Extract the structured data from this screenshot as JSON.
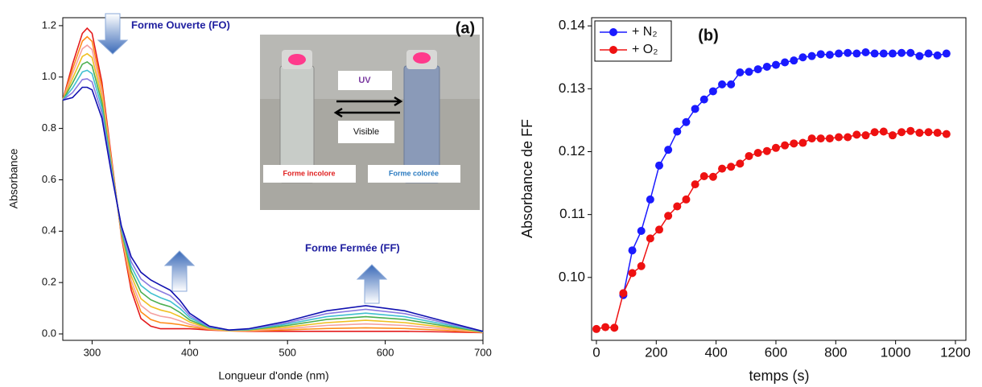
{
  "chart_data": [
    {
      "type": "line",
      "panel_label": "(a)",
      "x_label": "Longueur d'onde (nm)",
      "y_label": "Absorbance",
      "annotations": [
        "Forme Ouverte (FO)",
        "Forme Fermée (FF)"
      ],
      "inset_labels": [
        "UV",
        "Visible",
        "Forme incolore",
        "Forme colorée"
      ],
      "x": [
        270,
        280,
        290,
        295,
        300,
        310,
        320,
        330,
        340,
        350,
        360,
        370,
        380,
        390,
        400,
        420,
        440,
        460,
        500,
        540,
        580,
        620,
        660,
        700
      ],
      "series": [
        {
          "color": "#e41a1c",
          "values": [
            0.91,
            1.05,
            1.17,
            1.19,
            1.17,
            0.98,
            0.68,
            0.38,
            0.17,
            0.06,
            0.03,
            0.02,
            0.02,
            0.02,
            0.02,
            0.015,
            0.012,
            0.01,
            0.01,
            0.01,
            0.01,
            0.01,
            0.008,
            0.005
          ]
        },
        {
          "color": "#ff8c1a",
          "values": [
            0.91,
            1.031,
            1.14,
            1.157,
            1.139,
            0.96,
            0.671,
            0.386,
            0.189,
            0.086,
            0.056,
            0.044,
            0.041,
            0.036,
            0.029,
            0.017,
            0.012,
            0.011,
            0.016,
            0.021,
            0.024,
            0.021,
            0.014,
            0.006
          ]
        },
        {
          "color": "#f4a0a0",
          "values": [
            0.91,
            1.013,
            1.11,
            1.124,
            1.107,
            0.94,
            0.663,
            0.391,
            0.207,
            0.111,
            0.081,
            0.069,
            0.063,
            0.051,
            0.037,
            0.019,
            0.013,
            0.013,
            0.021,
            0.033,
            0.039,
            0.033,
            0.02,
            0.006
          ]
        },
        {
          "color": "#f0c020",
          "values": [
            0.91,
            0.994,
            1.08,
            1.091,
            1.076,
            0.92,
            0.654,
            0.397,
            0.226,
            0.137,
            0.107,
            0.093,
            0.084,
            0.067,
            0.046,
            0.021,
            0.013,
            0.014,
            0.027,
            0.044,
            0.053,
            0.044,
            0.026,
            0.007
          ]
        },
        {
          "color": "#4caf50",
          "values": [
            0.91,
            0.976,
            1.05,
            1.059,
            1.044,
            0.9,
            0.646,
            0.403,
            0.244,
            0.163,
            0.133,
            0.117,
            0.106,
            0.083,
            0.054,
            0.024,
            0.014,
            0.016,
            0.033,
            0.056,
            0.067,
            0.056,
            0.032,
            0.008
          ]
        },
        {
          "color": "#40c0d0",
          "values": [
            0.91,
            0.957,
            1.02,
            1.026,
            1.013,
            0.88,
            0.637,
            0.409,
            0.263,
            0.189,
            0.159,
            0.141,
            0.127,
            0.099,
            0.063,
            0.026,
            0.014,
            0.017,
            0.039,
            0.067,
            0.081,
            0.067,
            0.038,
            0.009
          ]
        },
        {
          "color": "#8a7be0",
          "values": [
            0.91,
            0.939,
            0.99,
            0.993,
            0.981,
            0.86,
            0.629,
            0.414,
            0.281,
            0.214,
            0.184,
            0.166,
            0.149,
            0.114,
            0.071,
            0.028,
            0.015,
            0.019,
            0.044,
            0.079,
            0.096,
            0.079,
            0.044,
            0.009
          ]
        },
        {
          "color": "#1010b0",
          "values": [
            0.91,
            0.92,
            0.96,
            0.96,
            0.95,
            0.84,
            0.62,
            0.42,
            0.3,
            0.24,
            0.21,
            0.19,
            0.17,
            0.13,
            0.08,
            0.03,
            0.015,
            0.02,
            0.05,
            0.09,
            0.11,
            0.09,
            0.05,
            0.01
          ]
        }
      ],
      "xlim": [
        270,
        700
      ],
      "xticks": [
        300,
        400,
        500,
        600,
        700
      ],
      "ylim": [
        -0.025,
        1.231
      ],
      "yticks": [
        {
          "value": 0,
          "label": "0.0"
        },
        0.2,
        0.4,
        0.6,
        0.8,
        {
          "value": 1,
          "label": "1.0"
        },
        1.2
      ],
      "markers": false
    },
    {
      "type": "line",
      "panel_label": "(b)",
      "x_label": "temps (s)",
      "y_label": "Absorbance de FF",
      "x": [
        0,
        30,
        60,
        90,
        120,
        150,
        180,
        210,
        240,
        270,
        300,
        330,
        360,
        390,
        420,
        450,
        480,
        510,
        540,
        570,
        600,
        630,
        660,
        690,
        720,
        750,
        780,
        810,
        840,
        870,
        900,
        930,
        960,
        990,
        1020,
        1050,
        1080,
        1110,
        1140,
        1170
      ],
      "series": [
        {
          "name": "+ N₂",
          "color": "#1a1aff",
          "values": [
            null,
            null,
            null,
            0.0972,
            0.1043,
            0.1074,
            0.1124,
            0.1178,
            0.1203,
            0.1232,
            0.1247,
            0.1268,
            0.1283,
            0.1296,
            0.1307,
            0.1307,
            0.1326,
            0.1327,
            0.1331,
            0.1335,
            0.1338,
            0.1342,
            0.1345,
            0.135,
            0.1352,
            0.1355,
            0.1354,
            0.1356,
            0.1357,
            0.1356,
            0.1358,
            0.1356,
            0.1356,
            0.1356,
            0.1357,
            0.1357,
            0.1352,
            0.1356,
            0.1353,
            0.1356
          ]
        },
        {
          "name": "+ O₂",
          "color": "#ee1111",
          "values": [
            0.0918,
            0.0921,
            0.092,
            0.0975,
            0.1007,
            0.1018,
            0.1062,
            0.1076,
            0.1098,
            0.1113,
            0.1124,
            0.1148,
            0.1161,
            0.116,
            0.1173,
            0.1176,
            0.1181,
            0.1193,
            0.1198,
            0.1201,
            0.1206,
            0.121,
            0.1213,
            0.1214,
            0.1221,
            0.1221,
            0.1221,
            0.1223,
            0.1223,
            0.1227,
            0.1226,
            0.1231,
            0.1232,
            0.1226,
            0.1231,
            0.1233,
            0.123,
            0.1231,
            0.123,
            0.1228
          ]
        }
      ],
      "xlim": [
        -16,
        1235
      ],
      "xticks": [
        0,
        200,
        400,
        600,
        800,
        1000,
        1200
      ],
      "ylim": [
        0.09,
        0.1413
      ],
      "yticks": [
        {
          "value": 0.1,
          "label": "0.10"
        },
        0.11,
        0.12,
        0.13,
        0.14
      ],
      "markers": true,
      "legend": "top-left"
    }
  ]
}
